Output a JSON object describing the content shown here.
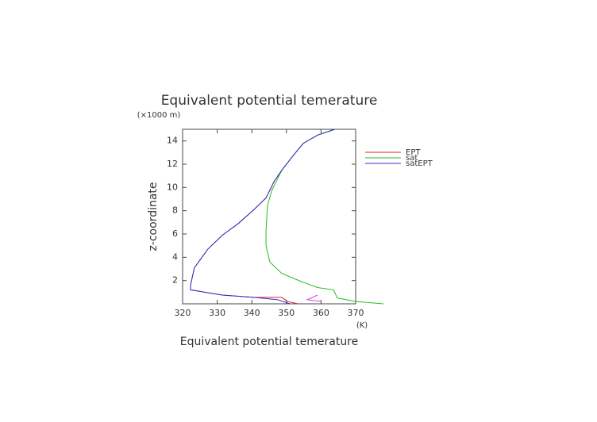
{
  "chart_data": {
    "type": "line",
    "title": "Equivalent potential temerature",
    "x_label": "Equivalent potential temerature",
    "x_unit": "(K)",
    "y_label": "z-coordinate",
    "y_unit": "(×1000 m)",
    "xlim": [
      320,
      370
    ],
    "xticks": [
      320,
      330,
      340,
      350,
      360,
      370
    ],
    "ylim": [
      0,
      15
    ],
    "yticks": [
      2,
      4,
      6,
      8,
      10,
      12,
      14
    ],
    "series": [
      {
        "name": "EPT",
        "color": "#e02020",
        "x": [
          364.0,
          359.0,
          354.9,
          352.1,
          348.7,
          346.4,
          344.1,
          340.6,
          336.1,
          331.5,
          327.3,
          323.4,
          322.3,
          322.3,
          331.5,
          340.6,
          348.7,
          350.3,
          353.3
        ],
        "values": [
          15.0,
          14.5,
          13.8,
          12.8,
          11.5,
          10.5,
          9.1,
          8.1,
          6.9,
          5.9,
          4.7,
          3.1,
          1.6,
          1.2,
          0.75,
          0.55,
          0.55,
          0.2,
          0
        ]
      },
      {
        "name": "sat",
        "color": "#20c020",
        "x": [
          364.0,
          359.0,
          354.9,
          352.1,
          348.7,
          345.7,
          344.5,
          344.1,
          344.1,
          345.2,
          348.7,
          354.4,
          359.0,
          363.6,
          364.7,
          370.0,
          378.0
        ],
        "values": [
          15.0,
          14.5,
          13.8,
          12.8,
          11.5,
          9.7,
          8.4,
          6.3,
          5.0,
          3.6,
          2.6,
          1.9,
          1.4,
          1.2,
          0.5,
          0.2,
          0
        ]
      },
      {
        "name": "satEPT",
        "color": "#3030d0",
        "x": [
          364.0,
          359.0,
          354.9,
          352.1,
          348.7,
          346.4,
          344.1,
          340.6,
          336.1,
          331.5,
          327.3,
          323.4,
          322.3,
          322.3,
          331.5,
          340.6,
          347.5,
          351.0
        ],
        "values": [
          15.0,
          14.5,
          13.8,
          12.8,
          11.5,
          10.5,
          9.1,
          8.1,
          6.9,
          5.9,
          4.7,
          3.1,
          1.6,
          1.2,
          0.75,
          0.55,
          0.35,
          0
        ]
      },
      {
        "color": "#e040e0",
        "x": [
          359.0,
          356.0,
          360.0
        ],
        "values": [
          0.75,
          0.35,
          0.2
        ]
      }
    ]
  }
}
